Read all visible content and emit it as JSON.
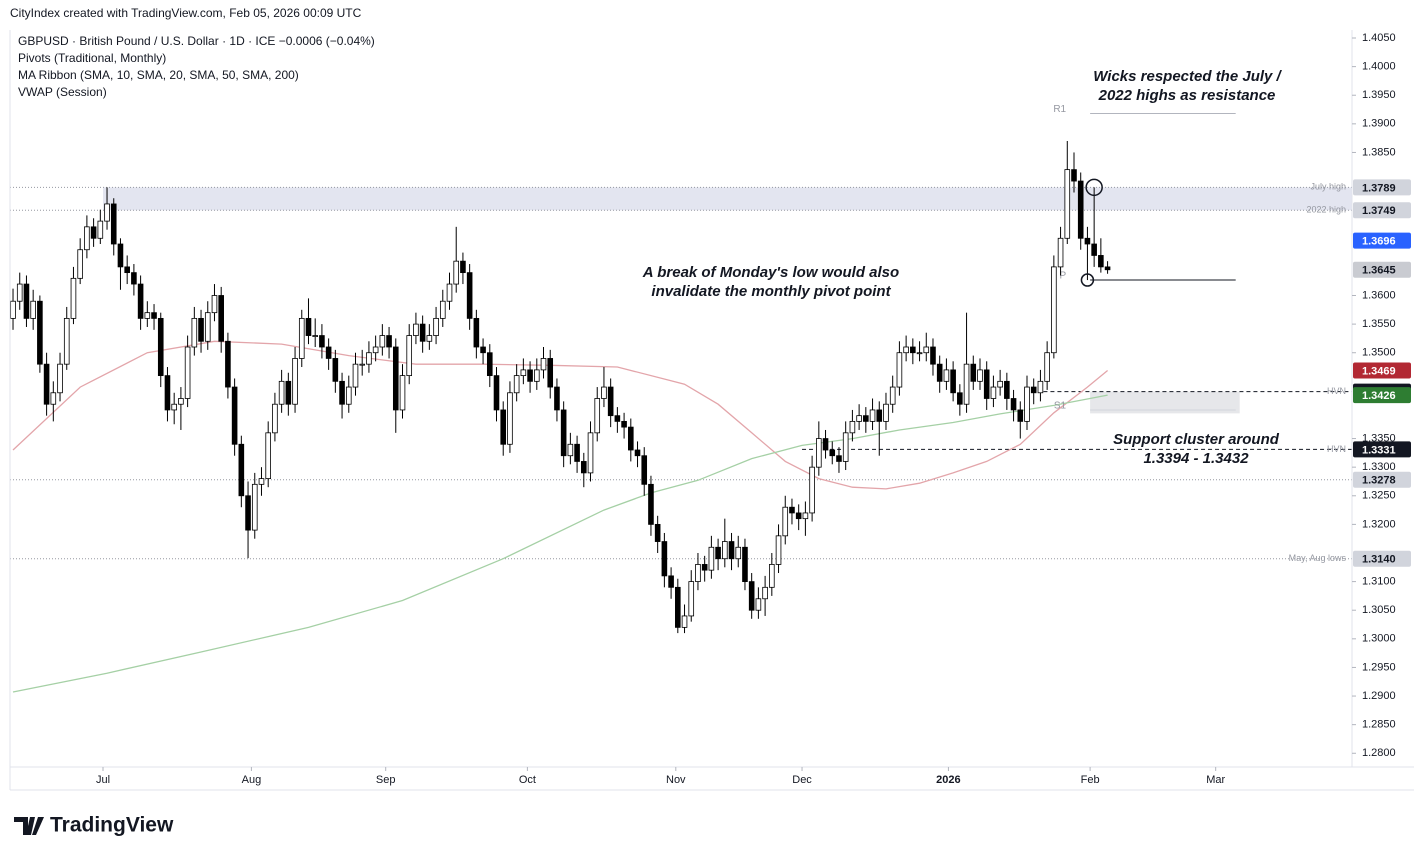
{
  "chart_data": {
    "type": "candlestick",
    "header": "CityIndex created with TradingView.com, Feb 05, 2026 00:09 UTC",
    "legend_lines": [
      "GBPUSD · British Pound / U.S. Dollar · 1D · ICE  −0.0006 (−0.04%)",
      "Pivots (Traditional, Monthly)",
      "MA Ribbon (SMA, 10, SMA, 20, SMA, 50, SMA, 200)",
      "VWAP (Session)"
    ],
    "footer_logo": "TradingView",
    "up_color": "#ffffff",
    "down_color": "#000000",
    "wick_color": "#000000",
    "xlim": [
      -0.45,
      199.4
    ],
    "xticks": [
      {
        "value": 13.4,
        "label": "Jul"
      },
      {
        "value": 35.5,
        "label": "Aug"
      },
      {
        "value": 55.5,
        "label": "Sep"
      },
      {
        "value": 76.6,
        "label": "Oct"
      },
      {
        "value": 98.7,
        "label": "Nov"
      },
      {
        "value": 117.5,
        "label": "Dec"
      },
      {
        "value": 139.3,
        "label": "2026"
      },
      {
        "value": 160.4,
        "label": "Feb"
      },
      {
        "value": 179.1,
        "label": "Mar"
      }
    ],
    "ylim": [
      1.2776,
      1.4064
    ],
    "yticks": [
      {
        "value": 1.405,
        "label": "1.4050"
      },
      {
        "value": 1.4,
        "label": "1.4000"
      },
      {
        "value": 1.395,
        "label": "1.3950"
      },
      {
        "value": 1.39,
        "label": "1.3900"
      },
      {
        "value": 1.385,
        "label": "1.3850"
      },
      {
        "value": 1.36,
        "label": "1.3600"
      },
      {
        "value": 1.355,
        "label": "1.3550"
      },
      {
        "value": 1.35,
        "label": "1.3500"
      },
      {
        "value": 1.335,
        "label": "1.3350"
      },
      {
        "value": 1.33,
        "label": "1.3300"
      },
      {
        "value": 1.325,
        "label": "1.3250"
      },
      {
        "value": 1.32,
        "label": "1.3200"
      },
      {
        "value": 1.31,
        "label": "1.3100"
      },
      {
        "value": 1.305,
        "label": "1.3050"
      },
      {
        "value": 1.3,
        "label": "1.3000"
      },
      {
        "value": 1.295,
        "label": "1.2950"
      },
      {
        "value": 1.29,
        "label": "1.2900"
      },
      {
        "value": 1.285,
        "label": "1.2850"
      },
      {
        "value": 1.28,
        "label": "1.2800"
      }
    ],
    "candles": [
      [
        1.356,
        1.3612,
        1.354,
        1.359
      ],
      [
        1.359,
        1.364,
        1.3575,
        1.362
      ],
      [
        1.362,
        1.3635,
        1.3545,
        1.356
      ],
      [
        1.356,
        1.361,
        1.354,
        1.359
      ],
      [
        1.359,
        1.36,
        1.3465,
        1.348
      ],
      [
        1.348,
        1.35,
        1.339,
        1.341
      ],
      [
        1.341,
        1.345,
        1.338,
        1.343
      ],
      [
        1.343,
        1.35,
        1.3415,
        1.348
      ],
      [
        1.348,
        1.358,
        1.347,
        1.356
      ],
      [
        1.356,
        1.365,
        1.355,
        1.363
      ],
      [
        1.363,
        1.37,
        1.362,
        1.368
      ],
      [
        1.368,
        1.374,
        1.3665,
        1.372
      ],
      [
        1.372,
        1.3735,
        1.3685,
        1.37
      ],
      [
        1.37,
        1.375,
        1.369,
        1.373
      ],
      [
        1.373,
        1.3789,
        1.3715,
        1.376
      ],
      [
        1.376,
        1.377,
        1.367,
        1.369
      ],
      [
        1.369,
        1.37,
        1.361,
        1.365
      ],
      [
        1.365,
        1.367,
        1.362,
        1.364
      ],
      [
        1.364,
        1.3655,
        1.36,
        1.362
      ],
      [
        1.362,
        1.3635,
        1.354,
        1.356
      ],
      [
        1.356,
        1.359,
        1.3545,
        1.357
      ],
      [
        1.357,
        1.3585,
        1.354,
        1.356
      ],
      [
        1.356,
        1.357,
        1.344,
        1.346
      ],
      [
        1.346,
        1.3475,
        1.338,
        1.34
      ],
      [
        1.34,
        1.343,
        1.3375,
        1.341
      ],
      [
        1.341,
        1.344,
        1.3365,
        1.342
      ],
      [
        1.342,
        1.353,
        1.3405,
        1.351
      ],
      [
        1.351,
        1.358,
        1.3495,
        1.356
      ],
      [
        1.356,
        1.3575,
        1.35,
        1.352
      ],
      [
        1.352,
        1.359,
        1.3505,
        1.357
      ],
      [
        1.357,
        1.362,
        1.3555,
        1.36
      ],
      [
        1.36,
        1.3615,
        1.35,
        1.352
      ],
      [
        1.352,
        1.3535,
        1.342,
        1.344
      ],
      [
        1.344,
        1.3455,
        1.332,
        1.334
      ],
      [
        1.334,
        1.3355,
        1.323,
        1.325
      ],
      [
        1.325,
        1.3275,
        1.3141,
        1.319
      ],
      [
        1.319,
        1.329,
        1.3175,
        1.327
      ],
      [
        1.327,
        1.33,
        1.325,
        1.328
      ],
      [
        1.328,
        1.338,
        1.3265,
        1.336
      ],
      [
        1.336,
        1.343,
        1.3345,
        1.341
      ],
      [
        1.341,
        1.347,
        1.3395,
        1.345
      ],
      [
        1.345,
        1.3465,
        1.339,
        1.341
      ],
      [
        1.341,
        1.351,
        1.3395,
        1.349
      ],
      [
        1.349,
        1.3575,
        1.3475,
        1.356
      ],
      [
        1.356,
        1.3595,
        1.3515,
        1.353
      ],
      [
        1.353,
        1.356,
        1.351,
        1.353
      ],
      [
        1.353,
        1.355,
        1.349,
        1.351
      ],
      [
        1.351,
        1.3525,
        1.347,
        1.349
      ],
      [
        1.349,
        1.3505,
        1.343,
        1.345
      ],
      [
        1.345,
        1.3465,
        1.3385,
        1.341
      ],
      [
        1.341,
        1.346,
        1.3395,
        1.344
      ],
      [
        1.344,
        1.35,
        1.3425,
        1.348
      ],
      [
        1.348,
        1.3505,
        1.346,
        1.348
      ],
      [
        1.348,
        1.352,
        1.3465,
        1.35
      ],
      [
        1.35,
        1.353,
        1.3485,
        1.351
      ],
      [
        1.351,
        1.355,
        1.3495,
        1.353
      ],
      [
        1.353,
        1.3545,
        1.349,
        1.351
      ],
      [
        1.351,
        1.3525,
        1.336,
        1.34
      ],
      [
        1.34,
        1.348,
        1.3385,
        1.346
      ],
      [
        1.346,
        1.355,
        1.3445,
        1.353
      ],
      [
        1.353,
        1.357,
        1.3515,
        1.355
      ],
      [
        1.355,
        1.3565,
        1.35,
        1.352
      ],
      [
        1.352,
        1.355,
        1.3505,
        1.353
      ],
      [
        1.353,
        1.358,
        1.3515,
        1.356
      ],
      [
        1.356,
        1.361,
        1.3545,
        1.359
      ],
      [
        1.359,
        1.364,
        1.3575,
        1.362
      ],
      [
        1.362,
        1.372,
        1.3605,
        1.366
      ],
      [
        1.366,
        1.3675,
        1.362,
        1.364
      ],
      [
        1.364,
        1.3655,
        1.354,
        1.356
      ],
      [
        1.356,
        1.3575,
        1.349,
        1.351
      ],
      [
        1.351,
        1.3525,
        1.348,
        1.35
      ],
      [
        1.35,
        1.3515,
        1.344,
        1.346
      ],
      [
        1.346,
        1.3475,
        1.338,
        1.34
      ],
      [
        1.34,
        1.3415,
        1.332,
        1.334
      ],
      [
        1.334,
        1.345,
        1.3325,
        1.343
      ],
      [
        1.343,
        1.348,
        1.3415,
        1.346
      ],
      [
        1.346,
        1.349,
        1.3445,
        1.347
      ],
      [
        1.347,
        1.3485,
        1.343,
        1.345
      ],
      [
        1.345,
        1.349,
        1.3435,
        1.347
      ],
      [
        1.347,
        1.351,
        1.3455,
        1.349
      ],
      [
        1.349,
        1.3505,
        1.342,
        1.344
      ],
      [
        1.344,
        1.3455,
        1.338,
        1.34
      ],
      [
        1.34,
        1.3415,
        1.33,
        1.332
      ],
      [
        1.332,
        1.336,
        1.3305,
        1.334
      ],
      [
        1.334,
        1.3355,
        1.329,
        1.331
      ],
      [
        1.331,
        1.3325,
        1.3265,
        1.329
      ],
      [
        1.329,
        1.338,
        1.3275,
        1.336
      ],
      [
        1.336,
        1.344,
        1.3345,
        1.342
      ],
      [
        1.342,
        1.3475,
        1.3405,
        1.344
      ],
      [
        1.344,
        1.3455,
        1.337,
        1.339
      ],
      [
        1.339,
        1.3405,
        1.336,
        1.338
      ],
      [
        1.338,
        1.3395,
        1.335,
        1.337
      ],
      [
        1.337,
        1.3385,
        1.331,
        1.333
      ],
      [
        1.333,
        1.3345,
        1.33,
        1.332
      ],
      [
        1.332,
        1.3335,
        1.325,
        1.327
      ],
      [
        1.327,
        1.3285,
        1.318,
        1.32
      ],
      [
        1.32,
        1.3215,
        1.315,
        1.317
      ],
      [
        1.317,
        1.3185,
        1.309,
        1.311
      ],
      [
        1.311,
        1.3125,
        1.307,
        1.309
      ],
      [
        1.309,
        1.3105,
        1.301,
        1.302
      ],
      [
        1.302,
        1.306,
        1.301,
        1.304
      ],
      [
        1.304,
        1.312,
        1.303,
        1.31
      ],
      [
        1.31,
        1.315,
        1.3085,
        1.313
      ],
      [
        1.313,
        1.3145,
        1.31,
        1.312
      ],
      [
        1.312,
        1.318,
        1.3105,
        1.316
      ],
      [
        1.316,
        1.3175,
        1.312,
        1.314
      ],
      [
        1.314,
        1.321,
        1.3125,
        1.317
      ],
      [
        1.317,
        1.3185,
        1.312,
        1.314
      ],
      [
        1.314,
        1.318,
        1.3125,
        1.316
      ],
      [
        1.316,
        1.3175,
        1.3085,
        1.31
      ],
      [
        1.31,
        1.3115,
        1.3035,
        1.305
      ],
      [
        1.305,
        1.309,
        1.3035,
        1.307
      ],
      [
        1.307,
        1.311,
        1.304,
        1.309
      ],
      [
        1.309,
        1.315,
        1.3075,
        1.313
      ],
      [
        1.313,
        1.32,
        1.3115,
        1.318
      ],
      [
        1.318,
        1.325,
        1.3165,
        1.323
      ],
      [
        1.323,
        1.3245,
        1.32,
        1.322
      ],
      [
        1.322,
        1.3235,
        1.319,
        1.321
      ],
      [
        1.321,
        1.324,
        1.318,
        1.322
      ],
      [
        1.322,
        1.332,
        1.3205,
        1.33
      ],
      [
        1.33,
        1.338,
        1.3285,
        1.335
      ],
      [
        1.335,
        1.3365,
        1.3315,
        1.333
      ],
      [
        1.333,
        1.3345,
        1.3305,
        1.332
      ],
      [
        1.332,
        1.3335,
        1.329,
        1.331
      ],
      [
        1.331,
        1.338,
        1.3295,
        1.336
      ],
      [
        1.336,
        1.34,
        1.3345,
        1.338
      ],
      [
        1.338,
        1.341,
        1.3365,
        1.339
      ],
      [
        1.339,
        1.3405,
        1.336,
        1.338
      ],
      [
        1.338,
        1.342,
        1.3365,
        1.34
      ],
      [
        1.34,
        1.3415,
        1.332,
        1.338
      ],
      [
        1.338,
        1.343,
        1.3365,
        1.341
      ],
      [
        1.341,
        1.346,
        1.3395,
        1.344
      ],
      [
        1.344,
        1.352,
        1.3425,
        1.35
      ],
      [
        1.35,
        1.353,
        1.3485,
        1.351
      ],
      [
        1.351,
        1.3525,
        1.348,
        1.35
      ],
      [
        1.35,
        1.352,
        1.3485,
        1.35
      ],
      [
        1.35,
        1.3535,
        1.3485,
        1.351
      ],
      [
        1.351,
        1.3525,
        1.346,
        1.348
      ],
      [
        1.348,
        1.3495,
        1.343,
        1.345
      ],
      [
        1.345,
        1.349,
        1.3435,
        1.347
      ],
      [
        1.347,
        1.3485,
        1.3415,
        1.343
      ],
      [
        1.343,
        1.3445,
        1.339,
        1.341
      ],
      [
        1.341,
        1.357,
        1.3395,
        1.348
      ],
      [
        1.348,
        1.3495,
        1.3435,
        1.345
      ],
      [
        1.345,
        1.349,
        1.3435,
        1.347
      ],
      [
        1.347,
        1.3485,
        1.34,
        1.342
      ],
      [
        1.342,
        1.346,
        1.3405,
        1.344
      ],
      [
        1.344,
        1.347,
        1.3425,
        1.345
      ],
      [
        1.345,
        1.3465,
        1.34,
        1.342
      ],
      [
        1.342,
        1.3435,
        1.338,
        1.34
      ],
      [
        1.34,
        1.3415,
        1.335,
        1.338
      ],
      [
        1.338,
        1.346,
        1.3365,
        1.344
      ],
      [
        1.344,
        1.3455,
        1.341,
        1.343
      ],
      [
        1.343,
        1.347,
        1.3415,
        1.345
      ],
      [
        1.345,
        1.352,
        1.3435,
        1.35
      ],
      [
        1.35,
        1.367,
        1.349,
        1.365
      ],
      [
        1.365,
        1.372,
        1.3635,
        1.37
      ],
      [
        1.37,
        1.387,
        1.369,
        1.382
      ],
      [
        1.382,
        1.385,
        1.378,
        1.38
      ],
      [
        1.38,
        1.3815,
        1.368,
        1.37
      ],
      [
        1.37,
        1.372,
        1.3627,
        1.369
      ],
      [
        1.369,
        1.3789,
        1.365,
        1.367
      ],
      [
        1.367,
        1.37,
        1.364,
        1.365
      ],
      [
        1.365,
        1.366,
        1.3638,
        1.3645
      ]
    ],
    "ma_lines": [
      {
        "color": "#e3a5aa",
        "x": [
          0,
          10,
          20,
          30,
          40,
          50,
          60,
          70,
          80,
          90,
          100,
          105,
          110,
          115,
          120,
          125,
          130,
          135,
          140,
          145,
          150,
          155,
          160,
          163
        ],
        "values": [
          1.333,
          1.344,
          1.35,
          1.352,
          1.3515,
          1.3495,
          1.348,
          1.348,
          1.3478,
          1.3475,
          1.3445,
          1.341,
          1.336,
          1.331,
          1.328,
          1.3265,
          1.3262,
          1.3272,
          1.329,
          1.331,
          1.334,
          1.3395,
          1.344,
          1.3469
        ]
      },
      {
        "color": "#a5d0a5",
        "x": [
          0,
          14,
          28,
          44,
          58,
          73,
          88,
          95,
          102,
          110,
          117.5,
          125,
          132,
          140,
          147,
          155,
          163
        ],
        "values": [
          1.2907,
          1.294,
          1.2977,
          1.302,
          1.3067,
          1.314,
          1.3225,
          1.3255,
          1.3277,
          1.3315,
          1.3338,
          1.335,
          1.3365,
          1.3378,
          1.3393,
          1.3408,
          1.3426
        ]
      }
    ],
    "zones": [
      {
        "range": [
          1.3749,
          1.3789
        ],
        "color": "#e3e5f0"
      },
      {
        "range": [
          1.3394,
          1.3432
        ],
        "color": "#e6e7ea"
      }
    ],
    "pivots": [
      {
        "name": "R1",
        "value": 1.3918,
        "color": "#b2b5be"
      },
      {
        "name": "P",
        "value": 1.3627,
        "color": "#131722"
      },
      {
        "name": "S1",
        "value": 1.34,
        "color": "#d1d4dc"
      }
    ],
    "levels": [
      {
        "price": 1.3789,
        "tag": "July high",
        "line": "dotted",
        "bg": "#d1d4dc",
        "fg": "#131722"
      },
      {
        "price": 1.3749,
        "tag": "2022 high",
        "line": "dotted",
        "bg": "#d1d4dc",
        "fg": "#131722"
      },
      {
        "price": 1.3696,
        "bg": "#2962ff",
        "fg": "#ffffff"
      },
      {
        "price": 1.3645,
        "bg": "#c9cbd1",
        "fg": "#131722"
      },
      {
        "price": 1.3469,
        "bg": "#b22833",
        "fg": "#ffffff"
      },
      {
        "price": 1.3432,
        "tag": "HVN",
        "line": "dashed",
        "bg": "#131722",
        "fg": "#ffffff"
      },
      {
        "price": 1.3426,
        "bg": "#2e7d32",
        "fg": "#ffffff"
      },
      {
        "price": 1.3331,
        "tag": "HVN",
        "line": "dashed",
        "bg": "#131722",
        "fg": "#ffffff"
      },
      {
        "price": 1.3278,
        "line": "dotted",
        "bg": "#d1d4dc",
        "fg": "#131722"
      },
      {
        "price": 1.314,
        "price_label": "1.3140",
        "tag": "May, Aug lows",
        "line": "dotted",
        "bg": "#d1d4dc",
        "fg": "#131722"
      }
    ],
    "annotations": [
      {
        "lines": [
          "Wicks respected the July /",
          "2022 highs as resistance"
        ]
      },
      {
        "lines": [
          "A break of Monday's low would also",
          "invalidate the monthly pivot point"
        ]
      },
      {
        "lines": [
          "Support cluster around",
          "1.3394 - 1.3432"
        ]
      }
    ]
  }
}
